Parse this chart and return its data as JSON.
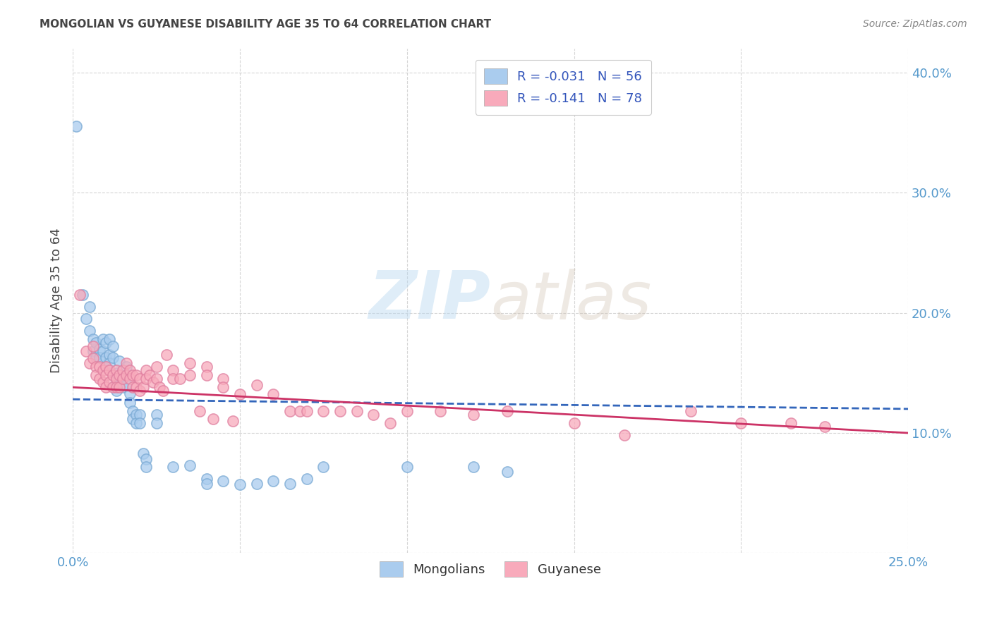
{
  "title": "MONGOLIAN VS GUYANESE DISABILITY AGE 35 TO 64 CORRELATION CHART",
  "source": "Source: ZipAtlas.com",
  "ylabel": "Disability Age 35 to 64",
  "xlim": [
    0.0,
    0.25
  ],
  "ylim": [
    0.0,
    0.42
  ],
  "xticks": [
    0.0,
    0.05,
    0.1,
    0.15,
    0.2,
    0.25
  ],
  "yticks": [
    0.0,
    0.1,
    0.2,
    0.3,
    0.4
  ],
  "mongolian_color": "#aaccee",
  "mongolian_edge": "#7aaad4",
  "guyanese_color": "#f8aabb",
  "guyanese_edge": "#e080a0",
  "mongolian_R": -0.031,
  "mongolian_N": 56,
  "guyanese_R": -0.141,
  "guyanese_N": 78,
  "mongolian_scatter": [
    [
      0.001,
      0.355
    ],
    [
      0.003,
      0.215
    ],
    [
      0.004,
      0.195
    ],
    [
      0.005,
      0.205
    ],
    [
      0.005,
      0.185
    ],
    [
      0.006,
      0.178
    ],
    [
      0.006,
      0.168
    ],
    [
      0.007,
      0.175
    ],
    [
      0.007,
      0.163
    ],
    [
      0.008,
      0.17
    ],
    [
      0.008,
      0.163
    ],
    [
      0.009,
      0.178
    ],
    [
      0.009,
      0.168
    ],
    [
      0.01,
      0.175
    ],
    [
      0.01,
      0.163
    ],
    [
      0.01,
      0.155
    ],
    [
      0.011,
      0.178
    ],
    [
      0.011,
      0.165
    ],
    [
      0.011,
      0.158
    ],
    [
      0.012,
      0.172
    ],
    [
      0.012,
      0.163
    ],
    [
      0.013,
      0.15
    ],
    [
      0.013,
      0.143
    ],
    [
      0.013,
      0.135
    ],
    [
      0.014,
      0.16
    ],
    [
      0.015,
      0.145
    ],
    [
      0.015,
      0.138
    ],
    [
      0.016,
      0.155
    ],
    [
      0.016,
      0.14
    ],
    [
      0.017,
      0.133
    ],
    [
      0.017,
      0.125
    ],
    [
      0.018,
      0.118
    ],
    [
      0.018,
      0.112
    ],
    [
      0.019,
      0.115
    ],
    [
      0.019,
      0.108
    ],
    [
      0.02,
      0.115
    ],
    [
      0.02,
      0.108
    ],
    [
      0.021,
      0.083
    ],
    [
      0.022,
      0.078
    ],
    [
      0.022,
      0.072
    ],
    [
      0.025,
      0.115
    ],
    [
      0.025,
      0.108
    ],
    [
      0.03,
      0.072
    ],
    [
      0.035,
      0.073
    ],
    [
      0.04,
      0.062
    ],
    [
      0.04,
      0.058
    ],
    [
      0.045,
      0.06
    ],
    [
      0.05,
      0.057
    ],
    [
      0.055,
      0.058
    ],
    [
      0.06,
      0.06
    ],
    [
      0.065,
      0.058
    ],
    [
      0.07,
      0.062
    ],
    [
      0.075,
      0.072
    ],
    [
      0.1,
      0.072
    ],
    [
      0.12,
      0.072
    ],
    [
      0.13,
      0.068
    ]
  ],
  "guyanese_scatter": [
    [
      0.002,
      0.215
    ],
    [
      0.004,
      0.168
    ],
    [
      0.005,
      0.158
    ],
    [
      0.006,
      0.172
    ],
    [
      0.006,
      0.162
    ],
    [
      0.007,
      0.155
    ],
    [
      0.007,
      0.148
    ],
    [
      0.008,
      0.155
    ],
    [
      0.008,
      0.145
    ],
    [
      0.009,
      0.152
    ],
    [
      0.009,
      0.142
    ],
    [
      0.01,
      0.155
    ],
    [
      0.01,
      0.148
    ],
    [
      0.01,
      0.138
    ],
    [
      0.011,
      0.152
    ],
    [
      0.011,
      0.142
    ],
    [
      0.012,
      0.148
    ],
    [
      0.012,
      0.138
    ],
    [
      0.013,
      0.152
    ],
    [
      0.013,
      0.145
    ],
    [
      0.013,
      0.138
    ],
    [
      0.014,
      0.148
    ],
    [
      0.014,
      0.138
    ],
    [
      0.015,
      0.152
    ],
    [
      0.015,
      0.145
    ],
    [
      0.016,
      0.158
    ],
    [
      0.016,
      0.148
    ],
    [
      0.017,
      0.152
    ],
    [
      0.017,
      0.145
    ],
    [
      0.018,
      0.148
    ],
    [
      0.018,
      0.138
    ],
    [
      0.019,
      0.148
    ],
    [
      0.019,
      0.138
    ],
    [
      0.02,
      0.145
    ],
    [
      0.02,
      0.135
    ],
    [
      0.021,
      0.138
    ],
    [
      0.022,
      0.152
    ],
    [
      0.022,
      0.145
    ],
    [
      0.023,
      0.148
    ],
    [
      0.024,
      0.142
    ],
    [
      0.025,
      0.155
    ],
    [
      0.025,
      0.145
    ],
    [
      0.026,
      0.138
    ],
    [
      0.027,
      0.135
    ],
    [
      0.028,
      0.165
    ],
    [
      0.03,
      0.152
    ],
    [
      0.03,
      0.145
    ],
    [
      0.032,
      0.145
    ],
    [
      0.035,
      0.158
    ],
    [
      0.035,
      0.148
    ],
    [
      0.038,
      0.118
    ],
    [
      0.04,
      0.155
    ],
    [
      0.04,
      0.148
    ],
    [
      0.042,
      0.112
    ],
    [
      0.045,
      0.145
    ],
    [
      0.045,
      0.138
    ],
    [
      0.048,
      0.11
    ],
    [
      0.05,
      0.132
    ],
    [
      0.055,
      0.14
    ],
    [
      0.06,
      0.132
    ],
    [
      0.065,
      0.118
    ],
    [
      0.068,
      0.118
    ],
    [
      0.07,
      0.118
    ],
    [
      0.075,
      0.118
    ],
    [
      0.08,
      0.118
    ],
    [
      0.085,
      0.118
    ],
    [
      0.09,
      0.115
    ],
    [
      0.095,
      0.108
    ],
    [
      0.1,
      0.118
    ],
    [
      0.11,
      0.118
    ],
    [
      0.12,
      0.115
    ],
    [
      0.13,
      0.118
    ],
    [
      0.15,
      0.108
    ],
    [
      0.165,
      0.098
    ],
    [
      0.185,
      0.118
    ],
    [
      0.2,
      0.108
    ],
    [
      0.215,
      0.108
    ],
    [
      0.225,
      0.105
    ]
  ],
  "mongolian_trend_x": [
    0.0,
    0.25
  ],
  "mongolian_trend_y": [
    0.128,
    0.12
  ],
  "guyanese_trend_x": [
    0.0,
    0.25
  ],
  "guyanese_trend_y": [
    0.138,
    0.1
  ],
  "background_color": "#ffffff",
  "grid_color": "#cccccc",
  "watermark_zip": "ZIP",
  "watermark_atlas": "atlas",
  "legend_mongolian_label": "R = -0.031   N = 56",
  "legend_guyanese_label": "R = -0.141   N = 78",
  "title_fontsize": 11,
  "axis_label_color": "#5599cc",
  "text_color": "#444444",
  "source_color": "#888888"
}
